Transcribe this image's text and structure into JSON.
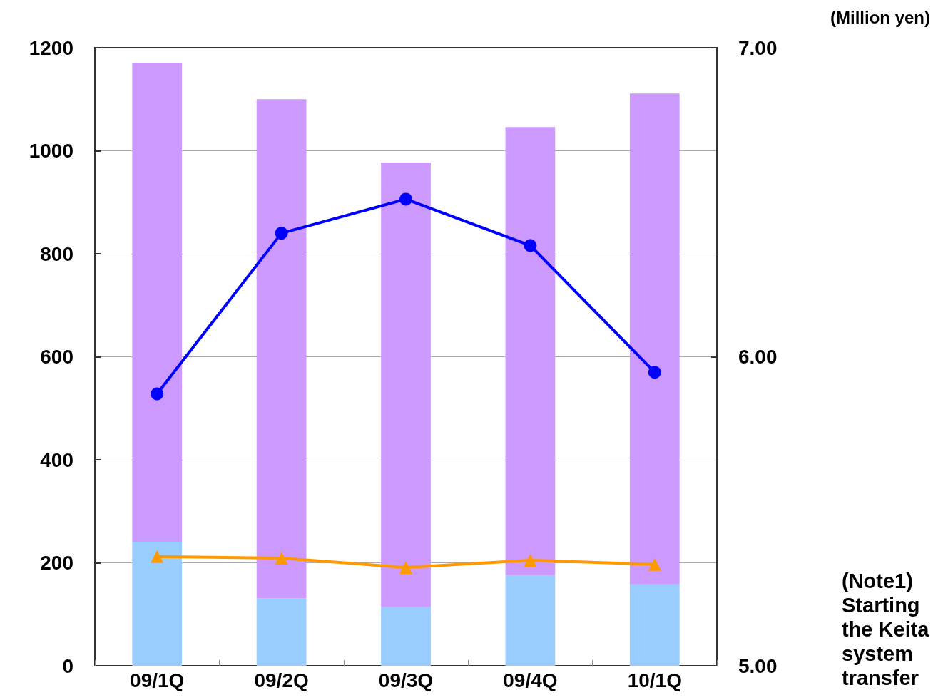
{
  "chart_data": {
    "type": "bar",
    "stacked": true,
    "categories": [
      "09/1Q",
      "09/2Q",
      "09/3Q",
      "09/4Q",
      "10/1Q"
    ],
    "series": [
      {
        "color": "#99ccff",
        "values": [
          241,
          131,
          115,
          176,
          158
        ]
      },
      {
        "color": "#cc99ff",
        "values": [
          930,
          969,
          862,
          870,
          953
        ]
      },
      {
        "type": "line",
        "axis": "y2",
        "color": "#0000ff",
        "marker": "circle",
        "values": [
          5.88,
          6.4,
          6.51,
          6.36,
          5.95
        ]
      },
      {
        "type": "line",
        "color": "#ff9900",
        "marker": "triangle",
        "values": [
          212,
          209,
          191,
          205,
          197
        ]
      }
    ],
    "ylim": [
      0,
      1200
    ],
    "yticks": [
      0,
      200,
      400,
      600,
      800,
      1000,
      1200
    ],
    "y2lim": [
      5,
      7
    ],
    "y2ticks": [
      {
        "value": 5,
        "label": "5.00"
      },
      {
        "value": 6,
        "label": "6.00"
      },
      {
        "value": 7,
        "label": "7.00"
      }
    ],
    "grid": "y",
    "line_style": "solid",
    "annotations": [
      "(Million yen)",
      "(Note1)",
      "Starting",
      "the Keita",
      "system",
      "transfer"
    ]
  }
}
